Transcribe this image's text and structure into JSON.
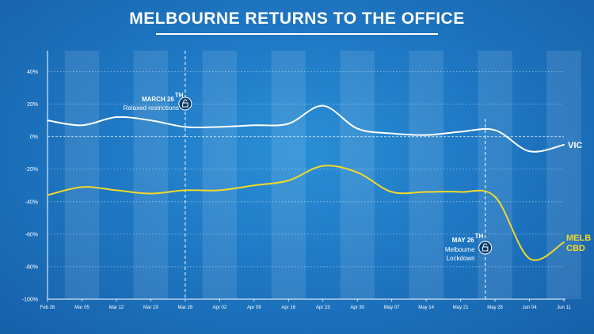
{
  "title": "MELBOURNE RETURNS TO THE OFFICE",
  "colors": {
    "vic": "#ffffff",
    "cbd": "#f2d82a",
    "background": "#1f78c4"
  },
  "icons": {
    "annotation": "lock-open-icon"
  },
  "chart_data": {
    "type": "line",
    "ylim": [
      -100,
      50
    ],
    "ytick_values": [
      40,
      20,
      0,
      -20,
      -40,
      -60,
      -80,
      -100
    ],
    "ytick_labels": [
      "40%",
      "20%",
      "0%",
      "-20%",
      "-40%",
      "-60%",
      "-80%",
      "-100%"
    ],
    "x": [
      "Feb 26",
      "Mar 05",
      "Mar 12",
      "Mar 19",
      "Mar 26",
      "Apr 02",
      "Apr 09",
      "Apr 16",
      "Apr 23",
      "Apr 30",
      "May 07",
      "May 14",
      "May 21",
      "May 28",
      "Jun 04",
      "Jun 11"
    ],
    "grid": "horizontal dotted",
    "series": [
      {
        "name": "VIC",
        "values": [
          10,
          7,
          12,
          10,
          6,
          6,
          7,
          8,
          19,
          5,
          2,
          1,
          3,
          4,
          -9,
          -5
        ]
      },
      {
        "name": "MELB CBD",
        "values": [
          -36,
          -31,
          -33,
          -35,
          -33,
          -33,
          -30,
          -27,
          -18,
          -22,
          -34,
          -34,
          -34,
          -37,
          -75,
          -65
        ]
      }
    ],
    "series_labels": {
      "vic": "VIC",
      "cbd_line1": "MELB",
      "cbd_line2": "CBD"
    },
    "annotations": [
      {
        "at": "Mar 26",
        "heading": "MARCH 26",
        "sup": "TH",
        "lines": [
          "Relaxed restrictions"
        ]
      },
      {
        "at": "May 26",
        "heading": "MAY 26",
        "sup": "TH",
        "lines": [
          "Melbourne",
          "Lockdown"
        ]
      }
    ]
  }
}
